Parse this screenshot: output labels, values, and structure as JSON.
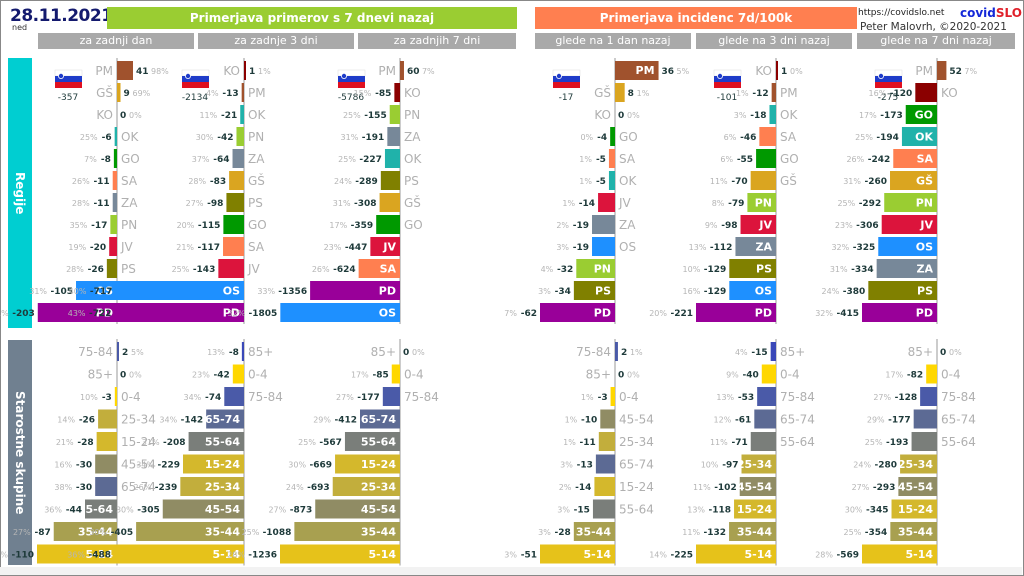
{
  "header": {
    "date": "28.11.2021",
    "day_of_week": "ned",
    "banner_cases": "Primerjava primerov s 7 dnevi nazaj",
    "banner_incidence": "Primerjava incidenc 7d/100k",
    "url": "https://covidslo.net",
    "brand_part1": "covid",
    "brand_part2": "SLO",
    "author": "Peter Malovrh, ©2020-2021",
    "subheaders": [
      "za zadnji dan",
      "za zadnje 3 dni",
      "za zadnjih 7 dni",
      "glede na 1 dan nazaj",
      "glede na 3 dni nazaj",
      "glede na 7 dni nazaj"
    ]
  },
  "sections": {
    "regions_label": "Regije",
    "age_label": "Starostne skupine"
  },
  "colors": {
    "regions": {
      "PM": "#a0522d",
      "GŠ": "#daa520",
      "KO": "#8b0000",
      "OK": "#20b2aa",
      "GO": "#009900",
      "SA": "#ff7f50",
      "ZA": "#778899",
      "PN": "#9acd32",
      "JV": "#dc143c",
      "PS": "#808000",
      "OS": "#1e90ff",
      "PD": "#990099"
    },
    "ages": {
      "0-4": "#ffd700",
      "5-14": "#e6c21a",
      "15-24": "#d4b82c",
      "25-34": "#c2ae3c",
      "35-44": "#a8a050",
      "45-54": "#908c64",
      "55-64": "#7a7e7a",
      "65-74": "#5c6a94",
      "75-84": "#4a5aa8",
      "85+": "#3a48b8"
    }
  },
  "chart_data": [
    {
      "type": "bar",
      "title": "Regije — za zadnji dan",
      "total": "-357",
      "scale": 205,
      "rows": [
        {
          "label": "PM",
          "value": 41,
          "pct": "98%"
        },
        {
          "label": "GŠ",
          "value": 9,
          "pct": "69%"
        },
        {
          "label": "KO",
          "value": 0,
          "pct": "0%"
        },
        {
          "label": "OK",
          "value": -6,
          "pct": "25%"
        },
        {
          "label": "GO",
          "value": -8,
          "pct": "7%"
        },
        {
          "label": "SA",
          "value": -11,
          "pct": "26%"
        },
        {
          "label": "ZA",
          "value": -11,
          "pct": "28%"
        },
        {
          "label": "PN",
          "value": -17,
          "pct": "35%"
        },
        {
          "label": "JV",
          "value": -20,
          "pct": "19%"
        },
        {
          "label": "PS",
          "value": -26,
          "pct": "28%"
        },
        {
          "label": "OS",
          "value": -105,
          "pct": "31%"
        },
        {
          "label": "PD",
          "value": -203,
          "pct": "41%"
        }
      ]
    },
    {
      "type": "bar",
      "title": "Regije — za zadnje 3 dni",
      "total": "-2134",
      "scale": 725,
      "rows": [
        {
          "label": "KO",
          "value": 1,
          "pct": "1%"
        },
        {
          "label": "PM",
          "value": -13,
          "pct": "4%"
        },
        {
          "label": "OK",
          "value": -21,
          "pct": "11%"
        },
        {
          "label": "PN",
          "value": -42,
          "pct": "30%"
        },
        {
          "label": "ZA",
          "value": -64,
          "pct": "37%"
        },
        {
          "label": "GŠ",
          "value": -83,
          "pct": "28%"
        },
        {
          "label": "PS",
          "value": -98,
          "pct": "27%"
        },
        {
          "label": "GO",
          "value": -115,
          "pct": "20%"
        },
        {
          "label": "SA",
          "value": -117,
          "pct": "21%"
        },
        {
          "label": "JV",
          "value": -143,
          "pct": "25%"
        },
        {
          "label": "OS",
          "value": -717,
          "pct": "40%"
        },
        {
          "label": "PD",
          "value": -722,
          "pct": "43%"
        }
      ]
    },
    {
      "type": "bar",
      "title": "Regije — za zadnjih 7 dni",
      "total": "-5786",
      "scale": 1810,
      "rows": [
        {
          "label": "PM",
          "value": 60,
          "pct": "7%"
        },
        {
          "label": "KO",
          "value": -85,
          "pct": "15%"
        },
        {
          "label": "PN",
          "value": -155,
          "pct": "25%"
        },
        {
          "label": "ZA",
          "value": -191,
          "pct": "31%"
        },
        {
          "label": "OK",
          "value": -227,
          "pct": "25%"
        },
        {
          "label": "PS",
          "value": -289,
          "pct": "24%"
        },
        {
          "label": "GŠ",
          "value": -308,
          "pct": "31%"
        },
        {
          "label": "GO",
          "value": -359,
          "pct": "17%"
        },
        {
          "label": "JV",
          "value": -447,
          "pct": "23%"
        },
        {
          "label": "SA",
          "value": -624,
          "pct": "26%"
        },
        {
          "label": "PD",
          "value": -1356,
          "pct": "33%"
        },
        {
          "label": "OS",
          "value": -1805,
          "pct": "32%"
        }
      ]
    },
    {
      "type": "bar",
      "title": "Regije — glede na 1 dan nazaj",
      "total": "-17",
      "scale": 62,
      "rows": [
        {
          "label": "PM",
          "value": 36,
          "pct": "5%"
        },
        {
          "label": "GŠ",
          "value": 8,
          "pct": "1%"
        },
        {
          "label": "KO",
          "value": 0,
          "pct": "0%"
        },
        {
          "label": "GO",
          "value": -4,
          "pct": "0%"
        },
        {
          "label": "SA",
          "value": -5,
          "pct": "1%"
        },
        {
          "label": "OK",
          "value": -5,
          "pct": "1%"
        },
        {
          "label": "JV",
          "value": -14,
          "pct": "1%"
        },
        {
          "label": "ZA",
          "value": -19,
          "pct": "2%"
        },
        {
          "label": "OS",
          "value": -19,
          "pct": "3%"
        },
        {
          "label": "PN",
          "value": -32,
          "pct": "4%"
        },
        {
          "label": "PS",
          "value": -34,
          "pct": "3%"
        },
        {
          "label": "PD",
          "value": -62,
          "pct": "7%"
        }
      ]
    },
    {
      "type": "bar",
      "title": "Regije — glede na 3 dni nazaj",
      "total": "-101",
      "scale": 221,
      "rows": [
        {
          "label": "KO",
          "value": 1,
          "pct": "0%"
        },
        {
          "label": "PM",
          "value": -12,
          "pct": "1%"
        },
        {
          "label": "OK",
          "value": -18,
          "pct": "3%"
        },
        {
          "label": "SA",
          "value": -46,
          "pct": "6%"
        },
        {
          "label": "GO",
          "value": -55,
          "pct": "6%"
        },
        {
          "label": "GŠ",
          "value": -70,
          "pct": "11%"
        },
        {
          "label": "PN",
          "value": -79,
          "pct": "8%"
        },
        {
          "label": "JV",
          "value": -98,
          "pct": "9%"
        },
        {
          "label": "ZA",
          "value": -112,
          "pct": "13%"
        },
        {
          "label": "PS",
          "value": -129,
          "pct": "10%"
        },
        {
          "label": "OS",
          "value": -129,
          "pct": "16%"
        },
        {
          "label": "PD",
          "value": -221,
          "pct": "20%"
        }
      ]
    },
    {
      "type": "bar",
      "title": "Regije — glede na 7 dni nazaj",
      "total": "-275",
      "scale": 415,
      "rows": [
        {
          "label": "PM",
          "value": 52,
          "pct": "7%"
        },
        {
          "label": "KO",
          "value": -120,
          "pct": "16%"
        },
        {
          "label": "GO",
          "value": -173,
          "pct": "17%"
        },
        {
          "label": "OK",
          "value": -194,
          "pct": "25%"
        },
        {
          "label": "SA",
          "value": -242,
          "pct": "26%"
        },
        {
          "label": "GŠ",
          "value": -260,
          "pct": "31%"
        },
        {
          "label": "PN",
          "value": -292,
          "pct": "25%"
        },
        {
          "label": "JV",
          "value": -306,
          "pct": "23%"
        },
        {
          "label": "OS",
          "value": -325,
          "pct": "32%"
        },
        {
          "label": "ZA",
          "value": -334,
          "pct": "31%"
        },
        {
          "label": "PS",
          "value": -380,
          "pct": "24%"
        },
        {
          "label": "PD",
          "value": -415,
          "pct": "32%"
        }
      ]
    },
    {
      "type": "bar",
      "title": "Starostne skupine — za zadnji dan",
      "scale": 110,
      "rows": [
        {
          "label": "75-84",
          "value": 2,
          "pct": "5%"
        },
        {
          "label": "85+",
          "value": 0,
          "pct": "0%"
        },
        {
          "label": "0-4",
          "value": -3,
          "pct": "10%"
        },
        {
          "label": "25-34",
          "value": -26,
          "pct": "14%"
        },
        {
          "label": "15-24",
          "value": -28,
          "pct": "21%"
        },
        {
          "label": "45-54",
          "value": -30,
          "pct": "16%"
        },
        {
          "label": "65-74",
          "value": -30,
          "pct": "38%"
        },
        {
          "label": "55-64",
          "value": -44,
          "pct": "36%"
        },
        {
          "label": "35-44",
          "value": -87,
          "pct": "27%"
        },
        {
          "label": "5-14",
          "value": -110,
          "pct": "39%"
        }
      ]
    },
    {
      "type": "bar",
      "title": "Starostne skupine — za zadnje 3 dni",
      "scale": 488,
      "rows": [
        {
          "label": "85+",
          "value": -8,
          "pct": "13%"
        },
        {
          "label": "0-4",
          "value": -42,
          "pct": "23%"
        },
        {
          "label": "75-84",
          "value": -74,
          "pct": "34%"
        },
        {
          "label": "65-74",
          "value": -142,
          "pct": "34%"
        },
        {
          "label": "55-64",
          "value": -208,
          "pct": "31%"
        },
        {
          "label": "15-24",
          "value": -229,
          "pct": "34%"
        },
        {
          "label": "25-34",
          "value": -239,
          "pct": "26%"
        },
        {
          "label": "45-54",
          "value": -305,
          "pct": "30%"
        },
        {
          "label": "35-44",
          "value": -405,
          "pct": "30%"
        },
        {
          "label": "5-14",
          "value": -488,
          "pct": "36%"
        }
      ]
    },
    {
      "type": "bar",
      "title": "Starostne skupine — za zadnjih 7 dni",
      "scale": 1236,
      "rows": [
        {
          "label": "85+",
          "value": 0,
          "pct": "0%"
        },
        {
          "label": "0-4",
          "value": -85,
          "pct": "17%"
        },
        {
          "label": "75-84",
          "value": -177,
          "pct": "27%"
        },
        {
          "label": "65-74",
          "value": -412,
          "pct": "29%"
        },
        {
          "label": "55-64",
          "value": -567,
          "pct": "25%"
        },
        {
          "label": "15-24",
          "value": -669,
          "pct": "30%"
        },
        {
          "label": "25-34",
          "value": -693,
          "pct": "24%"
        },
        {
          "label": "45-54",
          "value": -873,
          "pct": "27%"
        },
        {
          "label": "35-44",
          "value": -1088,
          "pct": "25%"
        },
        {
          "label": "5-14",
          "value": -1236,
          "pct": "28%"
        }
      ]
    },
    {
      "type": "bar",
      "title": "Starostne skupine — glede na 1 dan nazaj",
      "scale": 51,
      "rows": [
        {
          "label": "75-84",
          "value": 2,
          "pct": "1%"
        },
        {
          "label": "85+",
          "value": 0,
          "pct": "0%"
        },
        {
          "label": "0-4",
          "value": -3,
          "pct": "1%"
        },
        {
          "label": "45-54",
          "value": -10,
          "pct": "1%"
        },
        {
          "label": "25-34",
          "value": -11,
          "pct": "1%"
        },
        {
          "label": "65-74",
          "value": -13,
          "pct": "3%"
        },
        {
          "label": "15-24",
          "value": -14,
          "pct": "2%"
        },
        {
          "label": "55-64",
          "value": -15,
          "pct": "3%"
        },
        {
          "label": "35-44",
          "value": -28,
          "pct": "3%"
        },
        {
          "label": "5-14",
          "value": -51,
          "pct": "3%"
        }
      ]
    },
    {
      "type": "bar",
      "title": "Starostne skupine — glede na 3 dni nazaj",
      "scale": 225,
      "rows": [
        {
          "label": "85+",
          "value": -15,
          "pct": "4%"
        },
        {
          "label": "0-4",
          "value": -40,
          "pct": "9%"
        },
        {
          "label": "75-84",
          "value": -53,
          "pct": "13%"
        },
        {
          "label": "65-74",
          "value": -61,
          "pct": "12%"
        },
        {
          "label": "55-64",
          "value": -71,
          "pct": "11%"
        },
        {
          "label": "25-34",
          "value": -97,
          "pct": "10%"
        },
        {
          "label": "45-54",
          "value": -102,
          "pct": "11%"
        },
        {
          "label": "15-24",
          "value": -118,
          "pct": "13%"
        },
        {
          "label": "35-44",
          "value": -132,
          "pct": "11%"
        },
        {
          "label": "5-14",
          "value": -225,
          "pct": "14%"
        }
      ]
    },
    {
      "type": "bar",
      "title": "Starostne skupine — glede na 7 dni nazaj",
      "scale": 569,
      "rows": [
        {
          "label": "85+",
          "value": 0,
          "pct": "0%"
        },
        {
          "label": "0-4",
          "value": -82,
          "pct": "17%"
        },
        {
          "label": "75-84",
          "value": -128,
          "pct": "27%"
        },
        {
          "label": "65-74",
          "value": -177,
          "pct": "29%"
        },
        {
          "label": "55-64",
          "value": -193,
          "pct": "25%"
        },
        {
          "label": "25-34",
          "value": -280,
          "pct": "24%"
        },
        {
          "label": "45-54",
          "value": -293,
          "pct": "27%"
        },
        {
          "label": "15-24",
          "value": -345,
          "pct": "30%"
        },
        {
          "label": "35-44",
          "value": -354,
          "pct": "25%"
        },
        {
          "label": "5-14",
          "value": -569,
          "pct": "28%"
        }
      ]
    }
  ]
}
